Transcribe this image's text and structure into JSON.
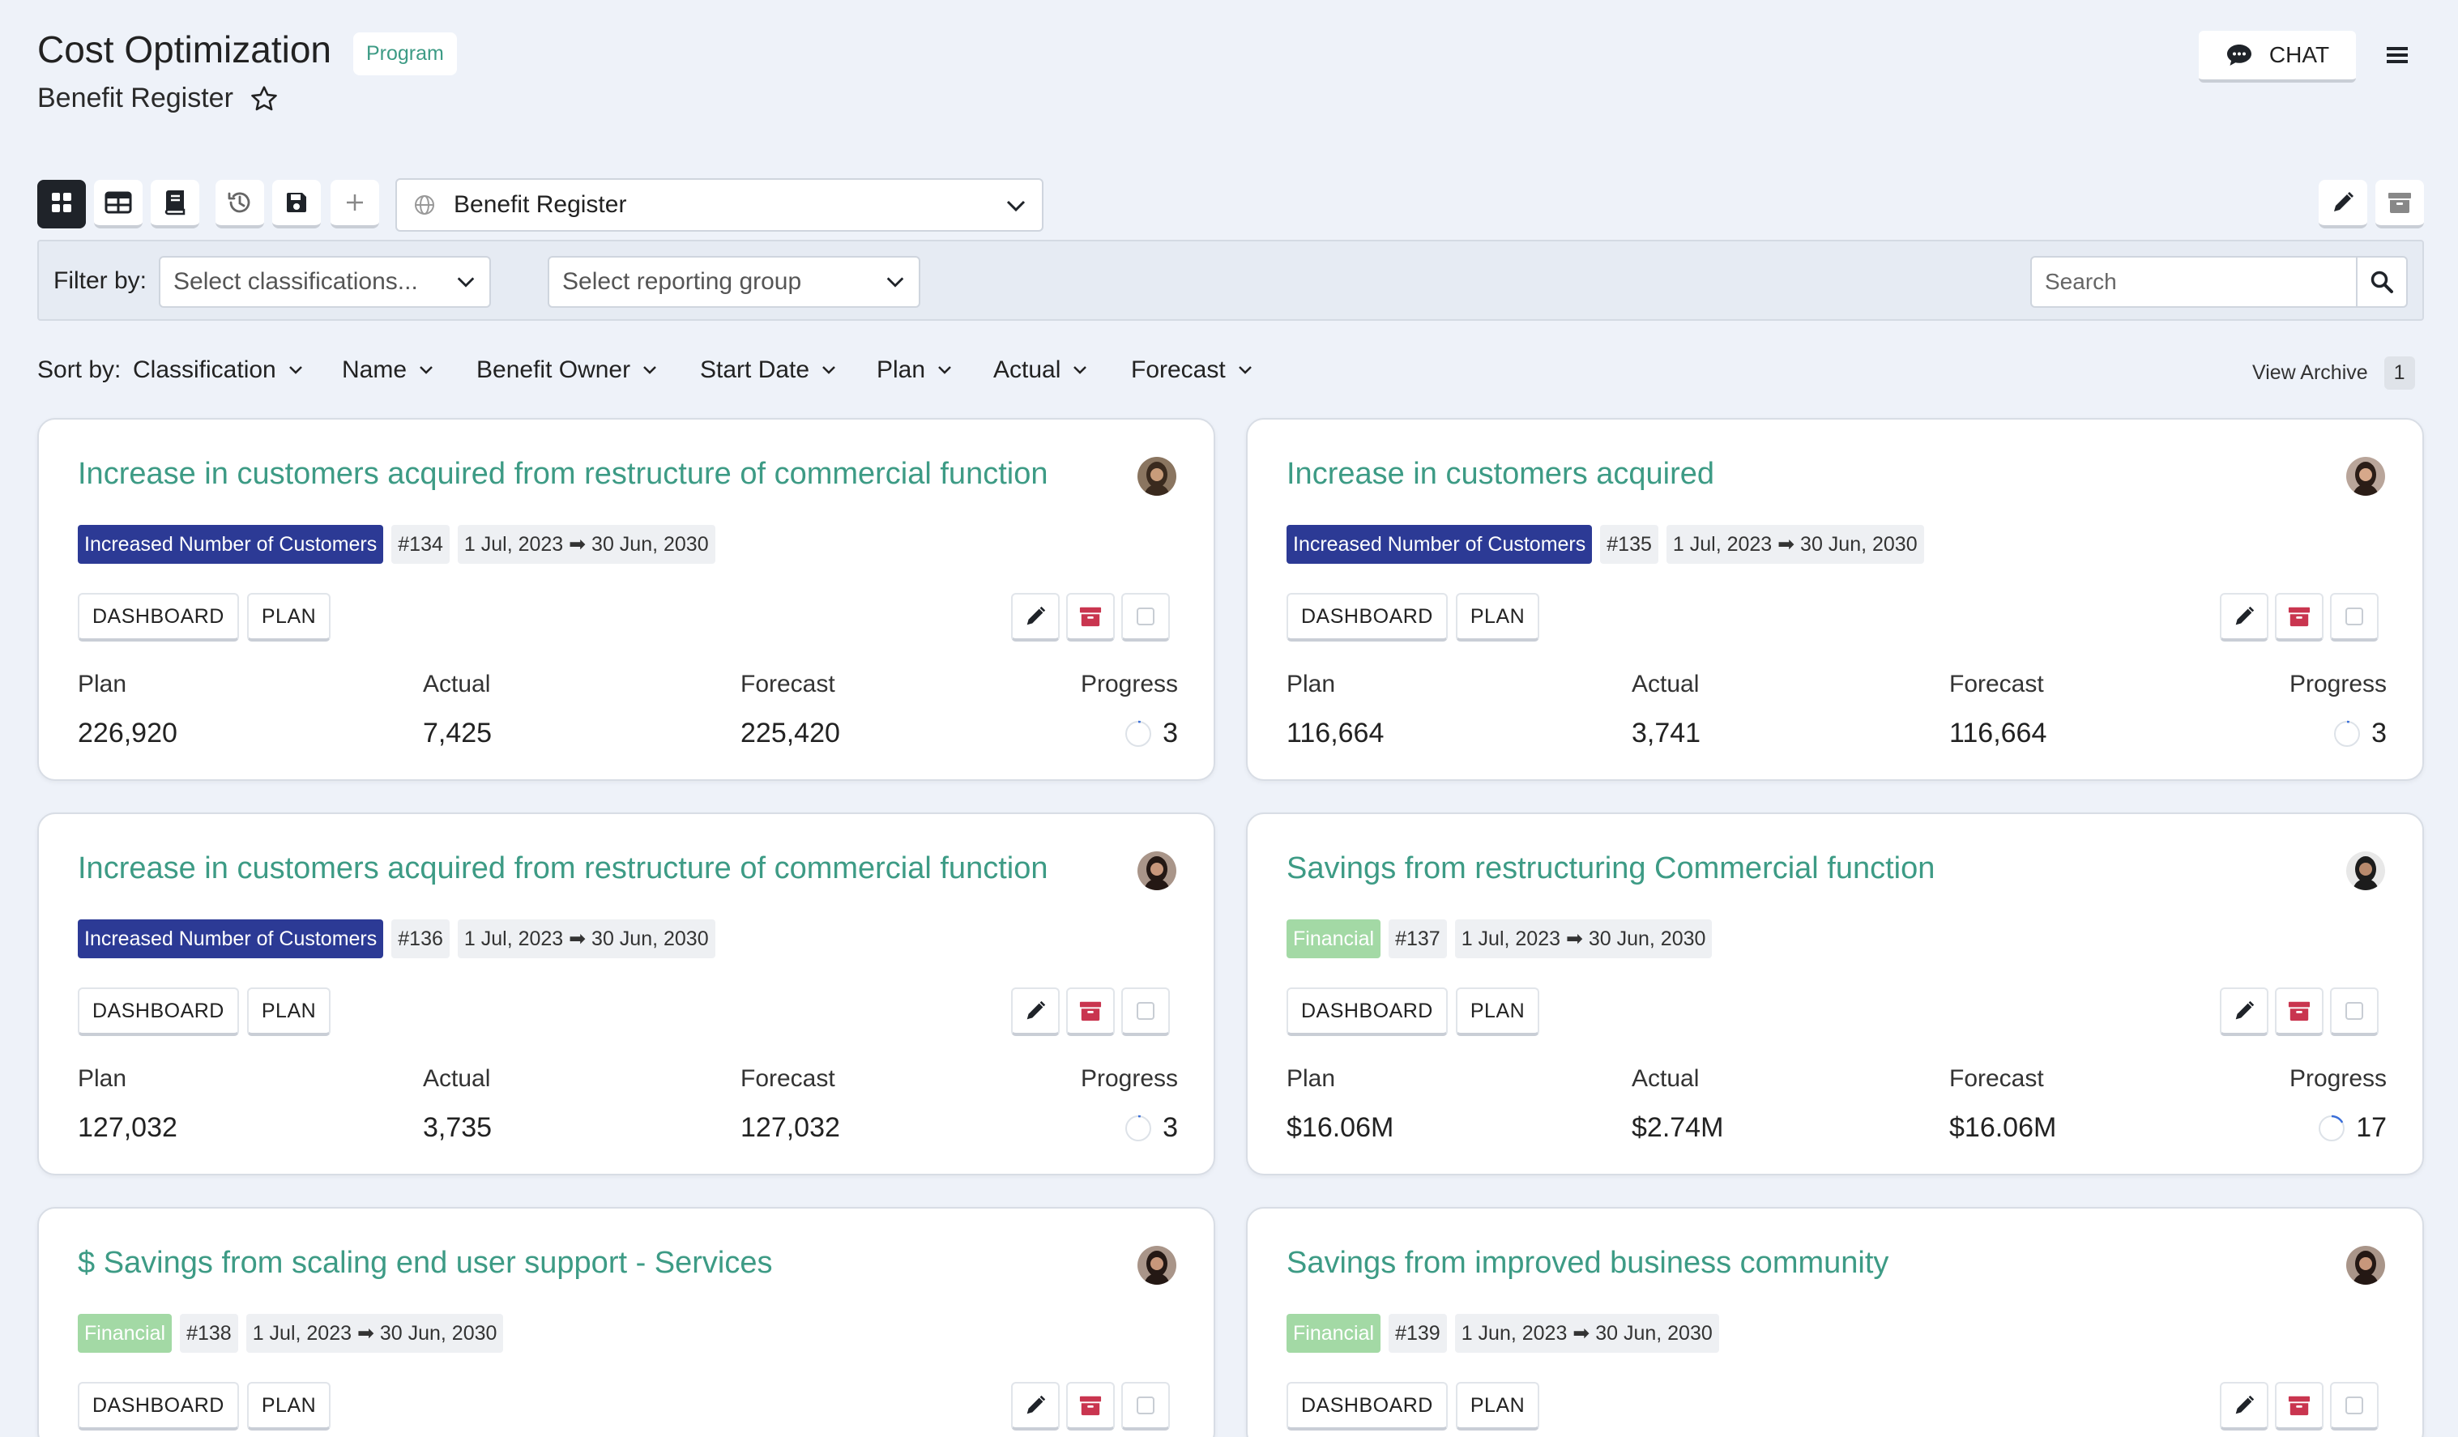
{
  "header": {
    "title": "Cost Optimization",
    "badge": "Program",
    "subtitle": "Benefit Register",
    "chat_label": "CHAT"
  },
  "toolbar": {
    "view_select": "Benefit Register"
  },
  "filter": {
    "label": "Filter by:",
    "classification_placeholder": "Select classifications...",
    "reporting_group_placeholder": "Select reporting group",
    "search_placeholder": "Search"
  },
  "sort": {
    "label": "Sort by:",
    "items": [
      "Classification",
      "Name",
      "Benefit Owner",
      "Start Date",
      "Plan",
      "Actual",
      "Forecast"
    ],
    "view_archive": "View Archive",
    "archive_count": "1"
  },
  "card_labels": {
    "dashboard": "DASHBOARD",
    "plan_btn": "PLAN",
    "plan": "Plan",
    "actual": "Actual",
    "forecast": "Forecast",
    "progress": "Progress"
  },
  "cards": [
    {
      "title": "Increase in customers acquired from restructure of commercial function",
      "classification": "Increased Number of Customers",
      "id": "#134",
      "dates": "1 Jul, 2023 ➡ 30 Jun, 2030",
      "plan": "226,920",
      "actual": "7,425",
      "forecast": "225,420",
      "progress": "3"
    },
    {
      "title": "Increase in customers acquired",
      "classification": "Increased Number of Customers",
      "id": "#135",
      "dates": "1 Jul, 2023 ➡ 30 Jun, 2030",
      "plan": "116,664",
      "actual": "3,741",
      "forecast": "116,664",
      "progress": "3"
    },
    {
      "title": "Increase in customers acquired from restructure of commercial function",
      "classification": "Increased Number of Customers",
      "id": "#136",
      "dates": "1 Jul, 2023 ➡ 30 Jun, 2030",
      "plan": "127,032",
      "actual": "3,735",
      "forecast": "127,032",
      "progress": "3"
    },
    {
      "title": "Savings from restructuring Commercial function",
      "classification": "Financial",
      "id": "#137",
      "dates": "1 Jul, 2023 ➡ 30 Jun, 2030",
      "plan": "$16.06M",
      "actual": "$2.74M",
      "forecast": "$16.06M",
      "progress": "17"
    },
    {
      "title": "$ Savings from scaling end user support - Services",
      "classification": "Financial",
      "id": "#138",
      "dates": "1 Jul, 2023 ➡ 30 Jun, 2030"
    },
    {
      "title": "Savings from improved business community",
      "classification": "Financial",
      "id": "#139",
      "dates": "1 Jun, 2023 ➡ 30 Jun, 2030"
    }
  ],
  "colors": {
    "accent": "#3d9b85",
    "classification_blue": "#2c3a95",
    "classification_green": "#a3d9a5",
    "archive_red": "#c9354f",
    "background": "#eef2f9"
  }
}
